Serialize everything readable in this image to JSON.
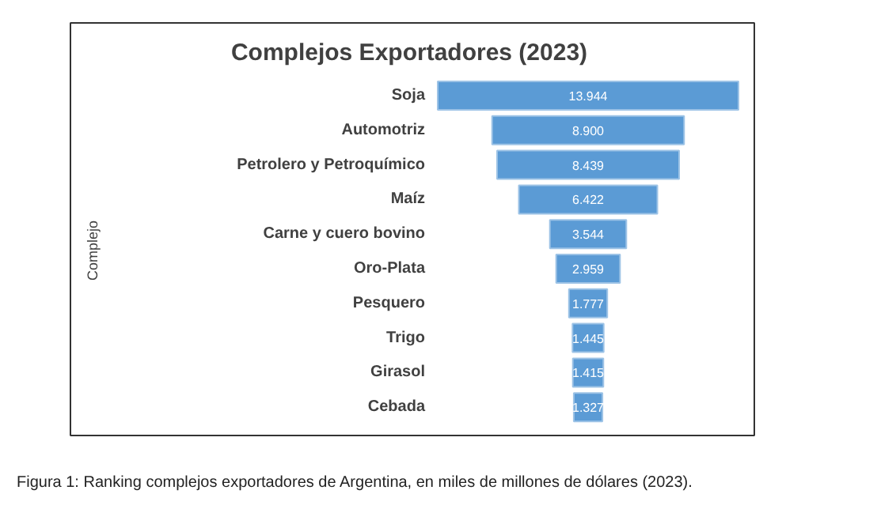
{
  "chart_data": {
    "type": "other",
    "title": "Complejos Exportadores (2023)",
    "ylabel": "Complejo",
    "categories": [
      "Soja",
      "Automotriz",
      "Petrolero y Petroquímico",
      "Maíz",
      "Carne y cuero bovino",
      "Oro-Plata",
      "Pesquero",
      "Trigo",
      "Girasol",
      "Cebada"
    ],
    "values": [
      13.944,
      8.9,
      8.439,
      6.422,
      3.544,
      2.959,
      1.777,
      1.445,
      1.415,
      1.327
    ],
    "value_labels": [
      "13.944",
      "8.900",
      "8.439",
      "6.422",
      "3.544",
      "2.959",
      "1.777",
      "1.445",
      "1.415",
      "1.327"
    ],
    "color": "#5b9bd5",
    "annotations": [
      "Figura 1: Ranking complejos exportadores de Argentina, en miles de millones de dólares (2023)."
    ]
  }
}
